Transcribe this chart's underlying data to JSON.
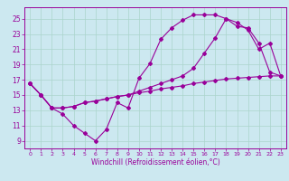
{
  "xlabel": "Windchill (Refroidissement éolien,°C)",
  "background_color": "#cce8f0",
  "grid_color": "#aad4cc",
  "line_color": "#990099",
  "xlim": [
    -0.5,
    23.5
  ],
  "ylim": [
    8.0,
    26.5
  ],
  "xticks": [
    0,
    1,
    2,
    3,
    4,
    5,
    6,
    7,
    8,
    9,
    10,
    11,
    12,
    13,
    14,
    15,
    16,
    17,
    18,
    19,
    20,
    21,
    22,
    23
  ],
  "yticks": [
    9,
    11,
    13,
    15,
    17,
    19,
    21,
    23,
    25
  ],
  "line1_x": [
    0,
    1,
    2,
    3,
    4,
    5,
    6,
    7,
    8,
    9,
    10,
    11,
    12,
    13,
    14,
    15,
    16,
    17,
    18,
    19,
    20,
    21,
    22,
    23
  ],
  "line1_y": [
    16.5,
    15.0,
    13.3,
    12.5,
    11.0,
    10.0,
    9.0,
    10.5,
    14.0,
    13.3,
    17.2,
    19.1,
    22.3,
    23.8,
    24.8,
    25.5,
    25.5,
    25.5,
    25.0,
    24.0,
    23.8,
    21.8,
    18.0,
    17.5
  ],
  "line2_x": [
    0,
    1,
    2,
    3,
    4,
    5,
    6,
    7,
    8,
    9,
    10,
    11,
    12,
    13,
    14,
    15,
    16,
    17,
    18,
    19,
    20,
    21,
    22,
    23
  ],
  "line2_y": [
    16.5,
    15.0,
    13.3,
    13.3,
    13.5,
    14.0,
    14.2,
    14.5,
    14.8,
    15.0,
    15.5,
    16.0,
    16.5,
    17.0,
    17.5,
    18.5,
    20.5,
    22.5,
    25.0,
    24.5,
    23.5,
    21.0,
    21.8,
    17.5
  ],
  "line3_x": [
    0,
    1,
    2,
    3,
    4,
    5,
    6,
    7,
    8,
    9,
    10,
    11,
    12,
    13,
    14,
    15,
    16,
    17,
    18,
    19,
    20,
    21,
    22,
    23
  ],
  "line3_y": [
    16.5,
    15.0,
    13.3,
    13.3,
    13.5,
    14.0,
    14.2,
    14.5,
    14.8,
    15.0,
    15.3,
    15.5,
    15.8,
    16.0,
    16.2,
    16.5,
    16.7,
    16.9,
    17.1,
    17.2,
    17.3,
    17.4,
    17.5,
    17.5
  ]
}
